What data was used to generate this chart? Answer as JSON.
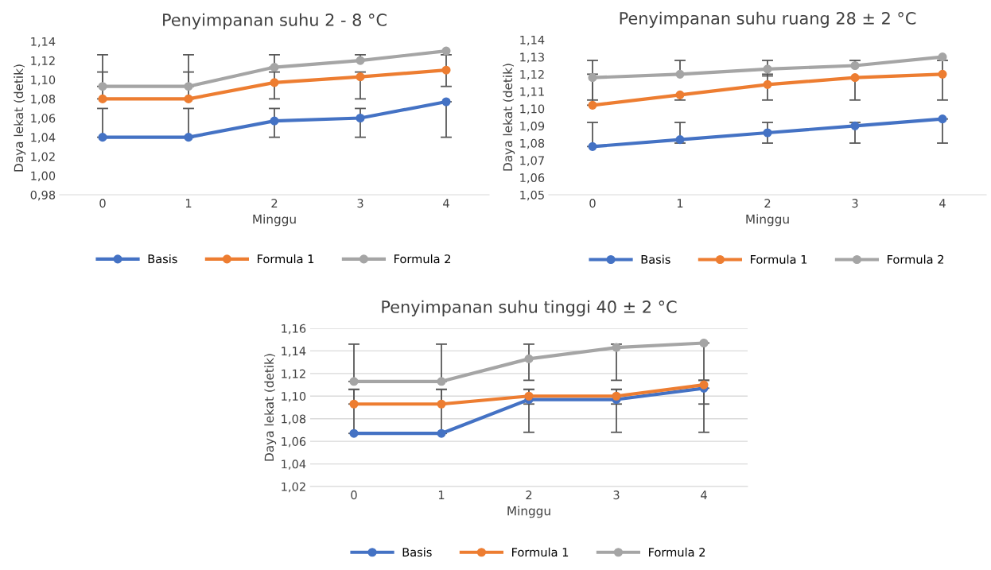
{
  "chart_data": [
    {
      "type": "line",
      "title": "Penyimpanan suhu 2 - 8 °C",
      "xlabel": "Minggu",
      "ylabel": "Daya lekat (detik)",
      "categories": [
        "0",
        "1",
        "2",
        "3",
        "4"
      ],
      "ylim": [
        0.98,
        1.14
      ],
      "yticks": [
        {
          "value": 0.98,
          "label": "0,98"
        },
        {
          "value": 1.0,
          "label": "1,00"
        },
        {
          "value": 1.02,
          "label": "1,02"
        },
        {
          "value": 1.04,
          "label": "1,04"
        },
        {
          "value": 1.06,
          "label": "1,06"
        },
        {
          "value": 1.08,
          "label": "1,08"
        },
        {
          "value": 1.1,
          "label": "1,10"
        },
        {
          "value": 1.12,
          "label": "1,12"
        },
        {
          "value": 1.14,
          "label": "1,14"
        }
      ],
      "grid": false,
      "legend": "bottom",
      "marker": "circle",
      "line_style": "solid",
      "series": [
        {
          "name": "Basis",
          "color": "#4472c4",
          "values": [
            1.04,
            1.04,
            1.057,
            1.06,
            1.077
          ],
          "errors": [
            [
              1.04,
              1.07
            ],
            [
              1.04,
              1.07
            ],
            [
              1.04,
              1.07
            ],
            [
              1.04,
              1.07
            ],
            [
              1.04,
              1.077
            ]
          ]
        },
        {
          "name": "Formula 1",
          "color": "#ed7d31",
          "values": [
            1.08,
            1.08,
            1.097,
            1.103,
            1.11
          ],
          "errors": [
            [
              1.08,
              1.108
            ],
            [
              1.08,
              1.108
            ],
            [
              1.08,
              1.108
            ],
            [
              1.08,
              1.108
            ],
            [
              1.093,
              1.126
            ]
          ]
        },
        {
          "name": "Formula 2",
          "color": "#a5a5a5",
          "values": [
            1.093,
            1.093,
            1.113,
            1.12,
            1.13
          ],
          "errors": [
            [
              1.093,
              1.126
            ],
            [
              1.093,
              1.126
            ],
            [
              1.113,
              1.126
            ],
            [
              1.12,
              1.126
            ],
            null
          ]
        }
      ]
    },
    {
      "type": "line",
      "title": "Penyimpanan suhu ruang 28 ± 2 °C",
      "xlabel": "Minggu",
      "ylabel": "Daya lekat (detik)",
      "categories": [
        "0",
        "1",
        "2",
        "3",
        "4"
      ],
      "ylim": [
        1.05,
        1.14
      ],
      "yticks": [
        {
          "value": 1.05,
          "label": "1,05"
        },
        {
          "value": 1.06,
          "label": "1,06"
        },
        {
          "value": 1.07,
          "label": "1,07"
        },
        {
          "value": 1.08,
          "label": "1,08"
        },
        {
          "value": 1.09,
          "label": "1,09"
        },
        {
          "value": 1.1,
          "label": "1,10"
        },
        {
          "value": 1.11,
          "label": "1,11"
        },
        {
          "value": 1.12,
          "label": "1,12"
        },
        {
          "value": 1.13,
          "label": "1,13"
        },
        {
          "value": 1.14,
          "label": "1,14"
        }
      ],
      "grid": false,
      "legend": "bottom",
      "marker": "circle",
      "line_style": "solid",
      "series": [
        {
          "name": "Basis",
          "color": "#4472c4",
          "values": [
            1.078,
            1.082,
            1.086,
            1.09,
            1.094
          ],
          "errors": [
            [
              1.078,
              1.092
            ],
            [
              1.08,
              1.092
            ],
            [
              1.08,
              1.092
            ],
            [
              1.08,
              1.092
            ],
            [
              1.08,
              1.094
            ]
          ]
        },
        {
          "name": "Formula 1",
          "color": "#ed7d31",
          "values": [
            1.102,
            1.108,
            1.114,
            1.118,
            1.12
          ],
          "errors": [
            [
              1.102,
              1.12
            ],
            [
              1.105,
              1.108
            ],
            [
              1.105,
              1.12
            ],
            [
              1.105,
              1.118
            ],
            [
              1.105,
              1.128
            ]
          ]
        },
        {
          "name": "Formula 2",
          "color": "#a5a5a5",
          "values": [
            1.118,
            1.12,
            1.123,
            1.125,
            1.13
          ],
          "errors": [
            [
              1.105,
              1.128
            ],
            [
              1.12,
              1.128
            ],
            [
              1.119,
              1.128
            ],
            [
              1.125,
              1.128
            ],
            null
          ]
        }
      ]
    },
    {
      "type": "line",
      "title": "Penyimpanan suhu tinggi 40 ± 2 °C",
      "xlabel": "Minggu",
      "ylabel": "Daya lekat (detik)",
      "categories": [
        "0",
        "1",
        "2",
        "3",
        "4"
      ],
      "ylim": [
        1.02,
        1.16
      ],
      "yticks": [
        {
          "value": 1.02,
          "label": "1,02"
        },
        {
          "value": 1.04,
          "label": "1,04"
        },
        {
          "value": 1.06,
          "label": "1,06"
        },
        {
          "value": 1.08,
          "label": "1,08"
        },
        {
          "value": 1.1,
          "label": "1,10"
        },
        {
          "value": 1.12,
          "label": "1,12"
        },
        {
          "value": 1.14,
          "label": "1,14"
        },
        {
          "value": 1.16,
          "label": "1,16"
        }
      ],
      "grid": "y",
      "legend": "bottom",
      "marker": "circle",
      "line_style": "solid",
      "series": [
        {
          "name": "Basis",
          "color": "#4472c4",
          "values": [
            1.067,
            1.067,
            1.097,
            1.097,
            1.107
          ],
          "errors": [
            [
              1.067,
              1.106
            ],
            [
              1.067,
              1.106
            ],
            [
              1.068,
              1.106
            ],
            [
              1.068,
              1.106
            ],
            [
              1.068,
              1.107
            ]
          ]
        },
        {
          "name": "Formula 1",
          "color": "#ed7d31",
          "values": [
            1.093,
            1.093,
            1.1,
            1.1,
            1.11
          ],
          "errors": [
            [
              1.093,
              1.106
            ],
            [
              1.093,
              1.106
            ],
            [
              1.093,
              1.106
            ],
            [
              1.093,
              1.106
            ],
            [
              1.093,
              1.114
            ]
          ]
        },
        {
          "name": "Formula 2",
          "color": "#a5a5a5",
          "values": [
            1.113,
            1.113,
            1.133,
            1.143,
            1.147
          ],
          "errors": [
            [
              1.113,
              1.146
            ],
            [
              1.113,
              1.146
            ],
            [
              1.114,
              1.146
            ],
            [
              1.114,
              1.146
            ],
            [
              1.114,
              1.147
            ]
          ]
        }
      ]
    }
  ]
}
